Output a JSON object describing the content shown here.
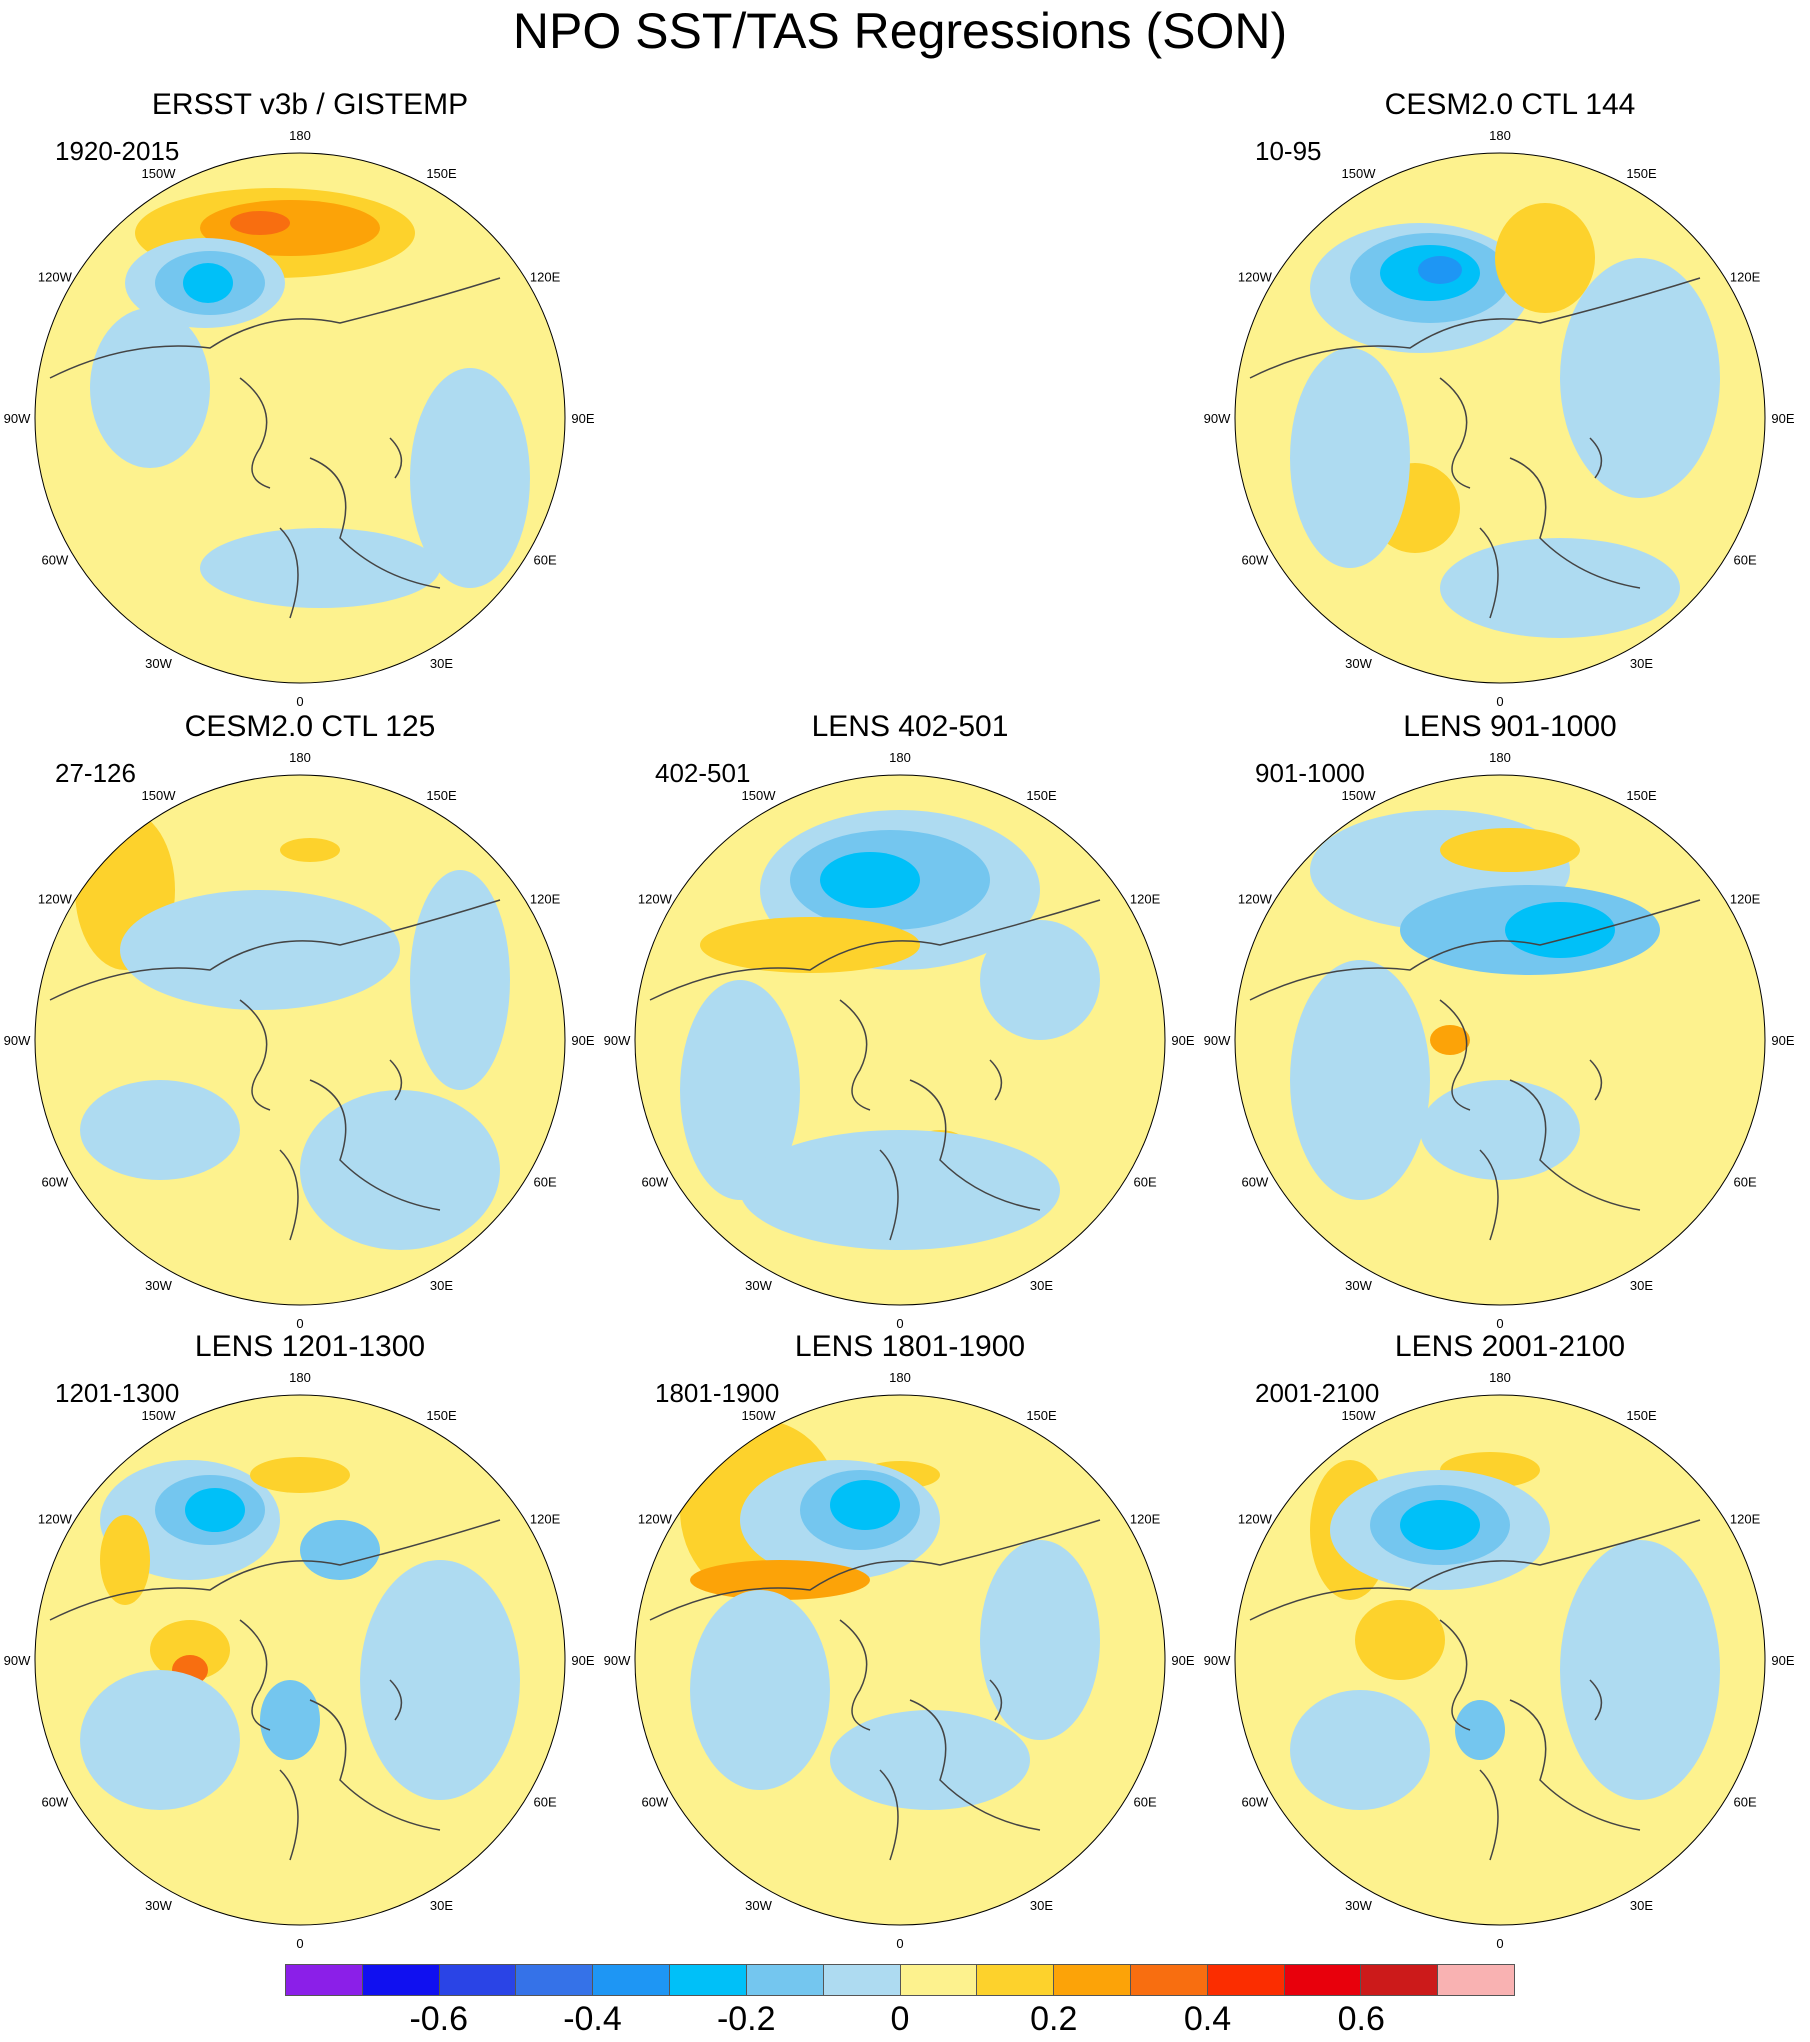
{
  "figure": {
    "title": "NPO SST/TAS Regressions (SON)"
  },
  "longitude_labels": [
    "180",
    "150E",
    "120E",
    "90E",
    "60E",
    "30E",
    "0",
    "30W",
    "60W",
    "90W",
    "120W",
    "150W"
  ],
  "panels": [
    {
      "title": "ERSST v3b / GISTEMP",
      "period": "1920-2015"
    },
    {
      "title": "CESM2.0 CTL 144",
      "period": "10-95"
    },
    {
      "title": "CESM2.0 CTL 125",
      "period": "27-126"
    },
    {
      "title": "LENS 402-501",
      "period": "402-501"
    },
    {
      "title": "LENS 901-1000",
      "period": "901-1000"
    },
    {
      "title": "LENS 1201-1300",
      "period": "1201-1300"
    },
    {
      "title": "LENS 1801-1900",
      "period": "1801-1900"
    },
    {
      "title": "LENS 2001-2100",
      "period": "2001-2100"
    }
  ],
  "colorbar": {
    "colors": [
      "#8b1fe8",
      "#1010f0",
      "#2a44e6",
      "#3572e8",
      "#1e96f4",
      "#00c0f8",
      "#74c6ef",
      "#aedbf1",
      "#fdf28e",
      "#fdd22c",
      "#fca308",
      "#f86e10",
      "#fb2d00",
      "#e8000c",
      "#cc1a1a",
      "#f9b2b2"
    ],
    "tick_labels": [
      "-0.6",
      "-0.4",
      "-0.2",
      "0",
      "0.2",
      "0.4",
      "0.6"
    ]
  }
}
